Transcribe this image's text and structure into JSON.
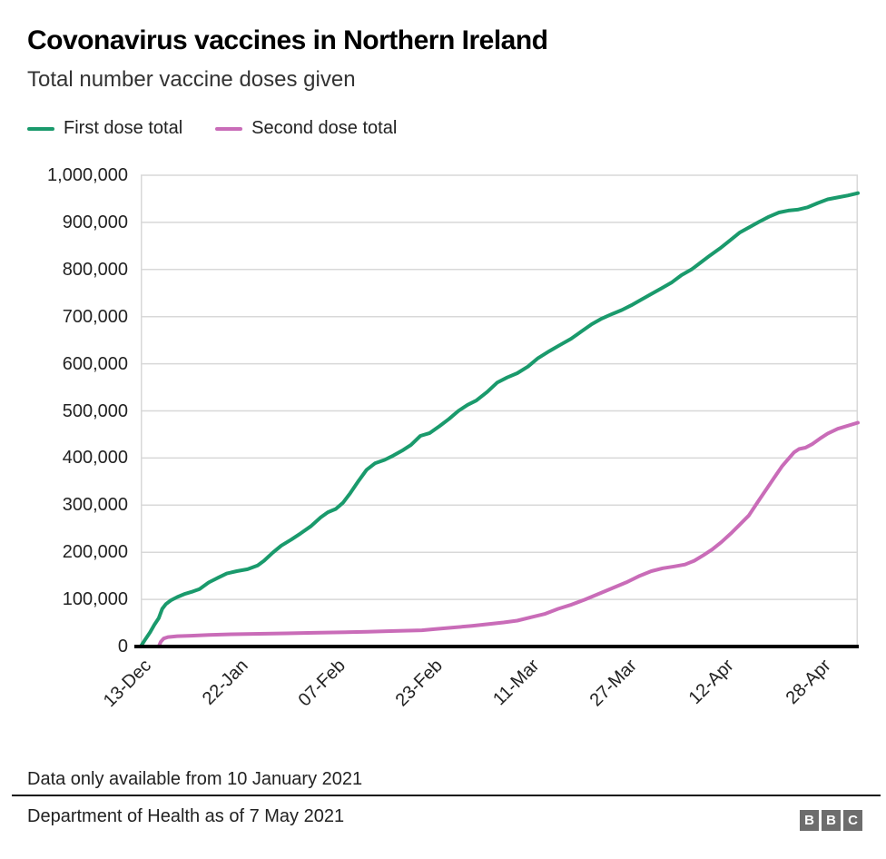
{
  "header": {
    "title": "Covonavirus vaccines in Northern Ireland",
    "subtitle": "Total number vaccine doses given"
  },
  "footer": {
    "note": "Data only available from 10 January 2021",
    "source": "Department of Health as of 7 May 2021",
    "logo_letters": [
      "B",
      "B",
      "C"
    ]
  },
  "colors": {
    "first_dose": "#1A9A6C",
    "second_dose": "#C96CB8",
    "gridline": "#D8D8D8",
    "axis": "#000000"
  },
  "chart_data": {
    "type": "line",
    "title": "Covonavirus vaccines in Northern Ireland",
    "subtitle": "Total number vaccine doses given",
    "xlabel": "",
    "ylabel": "",
    "ylim": [
      0,
      1000000
    ],
    "grid": "horizontal",
    "legend_position": "top-left",
    "ytick_values": [
      0,
      100000,
      200000,
      300000,
      400000,
      500000,
      600000,
      700000,
      800000,
      900000,
      1000000
    ],
    "ytick_labels": [
      "0",
      "100,000",
      "200,000",
      "300,000",
      "400,000",
      "500,000",
      "600,000",
      "700,000",
      "800,000",
      "900,000",
      "1,000,000"
    ],
    "xtick_labels": [
      "13-Dec",
      "22-Jan",
      "07-Feb",
      "23-Feb",
      "11-Mar",
      "27-Mar",
      "12-Apr",
      "28-Apr"
    ],
    "series": [
      {
        "name": "First dose total",
        "color": "#1A9A6C",
        "points": [
          [
            0.0,
            0
          ],
          [
            0.006,
            14000
          ],
          [
            0.013,
            30000
          ],
          [
            0.019,
            46000
          ],
          [
            0.025,
            60000
          ],
          [
            0.03,
            80000
          ],
          [
            0.035,
            90000
          ],
          [
            0.042,
            98000
          ],
          [
            0.051,
            105000
          ],
          [
            0.062,
            112000
          ],
          [
            0.073,
            117000
          ],
          [
            0.082,
            122000
          ],
          [
            0.095,
            136000
          ],
          [
            0.108,
            146000
          ],
          [
            0.12,
            155000
          ],
          [
            0.134,
            160000
          ],
          [
            0.149,
            164000
          ],
          [
            0.163,
            172000
          ],
          [
            0.172,
            182000
          ],
          [
            0.184,
            199000
          ],
          [
            0.196,
            214000
          ],
          [
            0.21,
            227000
          ],
          [
            0.223,
            240000
          ],
          [
            0.237,
            255000
          ],
          [
            0.251,
            274000
          ],
          [
            0.261,
            285000
          ],
          [
            0.272,
            292000
          ],
          [
            0.282,
            305000
          ],
          [
            0.292,
            325000
          ],
          [
            0.304,
            352000
          ],
          [
            0.315,
            375000
          ],
          [
            0.327,
            389000
          ],
          [
            0.34,
            396000
          ],
          [
            0.352,
            405000
          ],
          [
            0.366,
            417000
          ],
          [
            0.377,
            428000
          ],
          [
            0.39,
            447000
          ],
          [
            0.403,
            453000
          ],
          [
            0.417,
            468000
          ],
          [
            0.43,
            483000
          ],
          [
            0.443,
            500000
          ],
          [
            0.456,
            513000
          ],
          [
            0.468,
            522000
          ],
          [
            0.483,
            540000
          ],
          [
            0.497,
            560000
          ],
          [
            0.511,
            571000
          ],
          [
            0.525,
            580000
          ],
          [
            0.54,
            594000
          ],
          [
            0.554,
            612000
          ],
          [
            0.57,
            627000
          ],
          [
            0.585,
            640000
          ],
          [
            0.6,
            653000
          ],
          [
            0.614,
            668000
          ],
          [
            0.629,
            684000
          ],
          [
            0.643,
            696000
          ],
          [
            0.658,
            706000
          ],
          [
            0.671,
            714000
          ],
          [
            0.684,
            724000
          ],
          [
            0.698,
            736000
          ],
          [
            0.712,
            748000
          ],
          [
            0.726,
            760000
          ],
          [
            0.74,
            772000
          ],
          [
            0.754,
            788000
          ],
          [
            0.768,
            800000
          ],
          [
            0.781,
            815000
          ],
          [
            0.794,
            830000
          ],
          [
            0.808,
            845000
          ],
          [
            0.822,
            862000
          ],
          [
            0.835,
            878000
          ],
          [
            0.849,
            890000
          ],
          [
            0.862,
            901000
          ],
          [
            0.876,
            912000
          ],
          [
            0.89,
            921000
          ],
          [
            0.903,
            925000
          ],
          [
            0.916,
            927000
          ],
          [
            0.93,
            932000
          ],
          [
            0.944,
            941000
          ],
          [
            0.958,
            949000
          ],
          [
            0.972,
            953000
          ],
          [
            0.986,
            957000
          ],
          [
            1.0,
            962000
          ]
        ]
      },
      {
        "name": "Second dose total",
        "color": "#C96CB8",
        "points": [
          [
            0.025,
            0
          ],
          [
            0.028,
            10000
          ],
          [
            0.032,
            17000
          ],
          [
            0.038,
            20000
          ],
          [
            0.051,
            22000
          ],
          [
            0.07,
            23000
          ],
          [
            0.095,
            24500
          ],
          [
            0.127,
            26000
          ],
          [
            0.165,
            27000
          ],
          [
            0.203,
            28000
          ],
          [
            0.241,
            29000
          ],
          [
            0.278,
            30000
          ],
          [
            0.316,
            31500
          ],
          [
            0.354,
            33000
          ],
          [
            0.392,
            34500
          ],
          [
            0.411,
            37000
          ],
          [
            0.437,
            40500
          ],
          [
            0.462,
            44000
          ],
          [
            0.487,
            48000
          ],
          [
            0.506,
            51000
          ],
          [
            0.525,
            55000
          ],
          [
            0.544,
            62000
          ],
          [
            0.563,
            69000
          ],
          [
            0.582,
            80000
          ],
          [
            0.601,
            89000
          ],
          [
            0.62,
            100000
          ],
          [
            0.639,
            112000
          ],
          [
            0.658,
            124000
          ],
          [
            0.677,
            136000
          ],
          [
            0.696,
            150000
          ],
          [
            0.712,
            160000
          ],
          [
            0.728,
            166000
          ],
          [
            0.744,
            170000
          ],
          [
            0.759,
            174000
          ],
          [
            0.772,
            182000
          ],
          [
            0.785,
            194000
          ],
          [
            0.797,
            206000
          ],
          [
            0.81,
            222000
          ],
          [
            0.823,
            240000
          ],
          [
            0.835,
            258000
          ],
          [
            0.848,
            278000
          ],
          [
            0.861,
            308000
          ],
          [
            0.873,
            335000
          ],
          [
            0.884,
            360000
          ],
          [
            0.894,
            382000
          ],
          [
            0.903,
            398000
          ],
          [
            0.911,
            412000
          ],
          [
            0.918,
            419000
          ],
          [
            0.927,
            422000
          ],
          [
            0.937,
            430000
          ],
          [
            0.947,
            441000
          ],
          [
            0.958,
            452000
          ],
          [
            0.972,
            462000
          ],
          [
            1.0,
            475000
          ]
        ]
      }
    ]
  }
}
